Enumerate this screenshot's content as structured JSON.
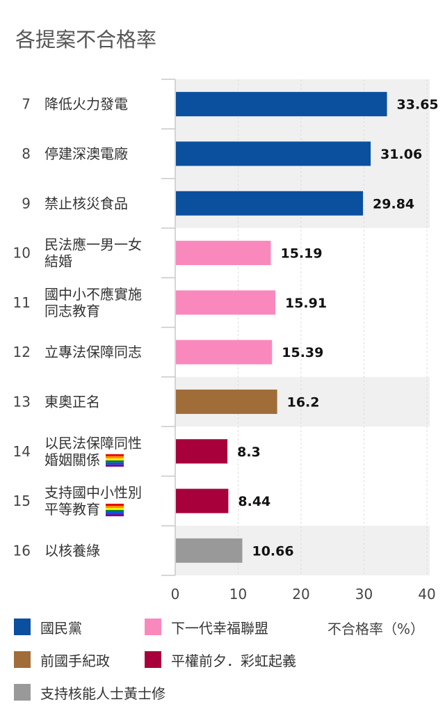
{
  "title": "各提案不合格率",
  "chart_data": {
    "type": "bar",
    "orientation": "horizontal",
    "categories": [
      {
        "num": "7",
        "lines": [
          "降低火力發電"
        ],
        "value": 33.65,
        "value_label": "33.65",
        "group": 0,
        "flag": false
      },
      {
        "num": "8",
        "lines": [
          "停建深澳電廠"
        ],
        "value": 31.06,
        "value_label": "31.06",
        "group": 0,
        "flag": false
      },
      {
        "num": "9",
        "lines": [
          "禁止核災食品"
        ],
        "value": 29.84,
        "value_label": "29.84",
        "group": 0,
        "flag": false
      },
      {
        "num": "10",
        "lines": [
          "民法應一男一女",
          "結婚"
        ],
        "value": 15.19,
        "value_label": "15.19",
        "group": 1,
        "flag": false
      },
      {
        "num": "11",
        "lines": [
          "國中小不應實施",
          "同志教育"
        ],
        "value": 15.91,
        "value_label": "15.91",
        "group": 1,
        "flag": false
      },
      {
        "num": "12",
        "lines": [
          "立專法保障同志"
        ],
        "value": 15.39,
        "value_label": "15.39",
        "group": 1,
        "flag": false
      },
      {
        "num": "13",
        "lines": [
          "東奧正名"
        ],
        "value": 16.2,
        "value_label": "16.2",
        "group": 2,
        "flag": false
      },
      {
        "num": "14",
        "lines": [
          "以民法保障同性",
          "婚姻關係"
        ],
        "value": 8.3,
        "value_label": "8.3",
        "group": 3,
        "flag": true
      },
      {
        "num": "15",
        "lines": [
          "支持國中小性別",
          "平等教育"
        ],
        "value": 8.44,
        "value_label": "8.44",
        "group": 3,
        "flag": true
      },
      {
        "num": "16",
        "lines": [
          "以核養綠"
        ],
        "value": 10.66,
        "value_label": "10.66",
        "group": 4,
        "flag": false
      }
    ],
    "xlim": [
      0,
      40
    ],
    "xticks": [
      0,
      10,
      20,
      30,
      40
    ],
    "xlabel": "不合格率（%）",
    "grid": true,
    "groups": [
      {
        "name": "國民黨",
        "color": "#0b4f9f"
      },
      {
        "name": "下一代幸福聯盟",
        "color": "#f989bd"
      },
      {
        "name": "前國手紀政",
        "color": "#a06d38"
      },
      {
        "name": "平權前夕．彩虹起義",
        "color": "#a8003a"
      },
      {
        "name": "支持核能人士黃士修",
        "color": "#999999"
      }
    ],
    "band_color": "#f0f0f0",
    "flag_icon": "rainbow-flag-icon"
  }
}
